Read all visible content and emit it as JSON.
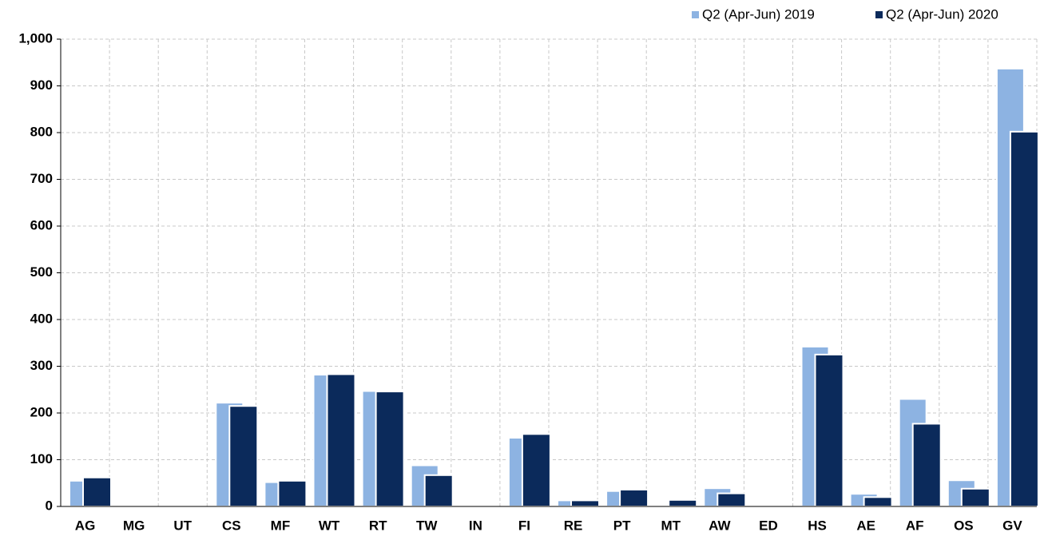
{
  "chart_data": {
    "type": "bar",
    "categories": [
      "AG",
      "MG",
      "UT",
      "CS",
      "MF",
      "WT",
      "RT",
      "TW",
      "IN",
      "FI",
      "RE",
      "PT",
      "MT",
      "AW",
      "ED",
      "HS",
      "AE",
      "AF",
      "OS",
      "GV"
    ],
    "series": [
      {
        "name": "Q2 (Apr-Jun) 2019",
        "color": "#8db3e2",
        "values": [
          55,
          0,
          0,
          222,
          52,
          282,
          247,
          88,
          0,
          147,
          13,
          33,
          0,
          39,
          0,
          342,
          27,
          230,
          56,
          937
        ]
      },
      {
        "name": "Q2 (Apr-Jun) 2020",
        "color": "#0b2a5b",
        "values": [
          62,
          0,
          0,
          215,
          55,
          283,
          246,
          67,
          0,
          155,
          13,
          36,
          14,
          28,
          0,
          325,
          20,
          177,
          38,
          802
        ]
      }
    ],
    "ylim": [
      0,
      1000
    ],
    "yticks": [
      0,
      100,
      200,
      300,
      400,
      500,
      600,
      700,
      800,
      900,
      {
        "value": 1000,
        "label": "1,000"
      }
    ],
    "grid": true
  }
}
